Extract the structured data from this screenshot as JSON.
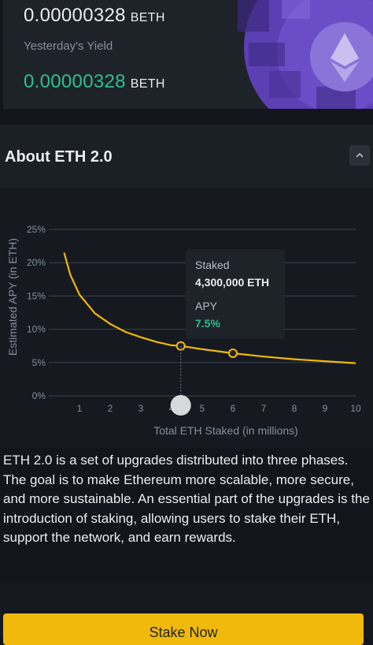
{
  "top": {
    "total_amount": "0.00000328",
    "total_unit": "BETH",
    "yesterday_label": "Yesterday's Yield",
    "yesterday_amount": "0.00000328",
    "yesterday_unit": "BETH"
  },
  "about": {
    "title": "About ETH 2.0",
    "description": "ETH 2.0 is a set of upgrades distributed into three phases. The goal is to make Ethereum more scalable, more secure, and more sustainable. An essential part of the upgrades is the introduction of staking, allowing users to stake their ETH, support the network, and earn rewards."
  },
  "tooltip": {
    "staked_label": "Staked",
    "staked_value": "4,300,000 ETH",
    "apy_label": "APY",
    "apy_value": "7.5%"
  },
  "chart_data": {
    "type": "line",
    "xlabel": "Total ETH Staked (in millions)",
    "ylabel": "Estimated APY (in ETH)",
    "x_ticks": [
      "1",
      "2",
      "3",
      "4",
      "5",
      "6",
      "7",
      "8",
      "9",
      "10"
    ],
    "y_ticks": [
      "0%",
      "5%",
      "10%",
      "15%",
      "20%",
      "25%"
    ],
    "xlim": [
      0,
      10
    ],
    "ylim": [
      0,
      25
    ],
    "grid": true,
    "series": [
      {
        "x": [
          0.5,
          0.7,
          1,
          1.5,
          2,
          2.5,
          3,
          3.5,
          4,
          4.3,
          5,
          6,
          7,
          8,
          9,
          10
        ],
        "y": [
          21.5,
          18.2,
          15.2,
          12.4,
          10.8,
          9.6,
          8.8,
          8.1,
          7.6,
          7.5,
          7.0,
          6.4,
          5.9,
          5.5,
          5.2,
          4.9
        ]
      }
    ],
    "markers": [
      {
        "x": 4.3,
        "y": 7.5
      },
      {
        "x": 6,
        "y": 6.4
      }
    ],
    "colors": {
      "line": "#f0b90b",
      "grid": "#3a414b",
      "text": "#848e9c"
    }
  },
  "actions": {
    "stake_label": "Stake Now"
  }
}
